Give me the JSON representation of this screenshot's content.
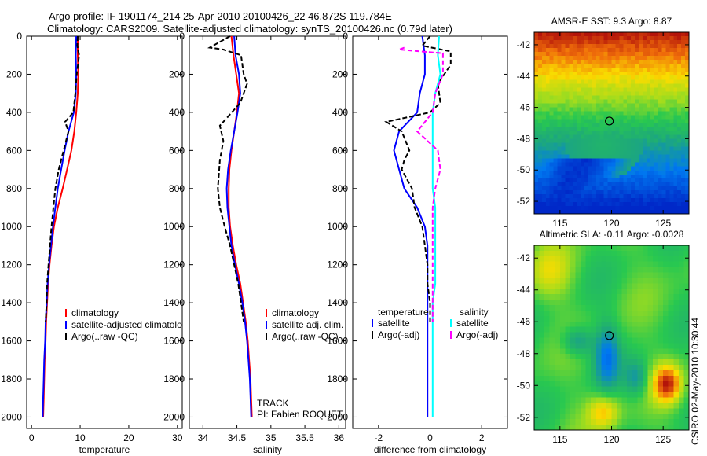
{
  "title": {
    "line1": "Argo profile: IF 1901174_214 25-Apr-2010 20100426_22 46.872S 119.784E",
    "line2": "Climatology: CARS2009. Satellite-adjusted climatology: synTS_20100426.nc (0.79d later)"
  },
  "side_text": "CSIRO 02-May-2010 10:30:44",
  "colors": {
    "red": "#ff0000",
    "blue": "#0000ff",
    "black": "#000000",
    "magenta": "#ff00ff",
    "cyan": "#00ffff"
  },
  "chart_data": [
    {
      "type": "line",
      "id": "temp",
      "xlabel": "temperature",
      "xlim": [
        -1,
        31
      ],
      "ylim": [
        2060,
        0
      ],
      "xticks": [
        0,
        10,
        20,
        30
      ],
      "yticks": [
        0,
        200,
        400,
        600,
        800,
        1000,
        1200,
        1400,
        1600,
        1800,
        2000
      ],
      "legend": {
        "placement": "lower-right",
        "entries": [
          "climatology",
          "satellite-adjusted climatology",
          "Argo(..raw -QC)"
        ]
      },
      "series": [
        {
          "name": "climatology",
          "color": "red",
          "dash": "",
          "points": [
            [
              9.5,
              0
            ],
            [
              9.5,
              100
            ],
            [
              9.6,
              200
            ],
            [
              9.5,
              300
            ],
            [
              9.2,
              400
            ],
            [
              8.8,
              500
            ],
            [
              8.2,
              600
            ],
            [
              7.3,
              700
            ],
            [
              6.4,
              800
            ],
            [
              5.4,
              900
            ],
            [
              4.6,
              1000
            ],
            [
              4.1,
              1100
            ],
            [
              3.7,
              1200
            ],
            [
              3.4,
              1300
            ],
            [
              3.2,
              1400
            ],
            [
              3.0,
              1500
            ],
            [
              2.9,
              1600
            ],
            [
              2.7,
              1700
            ],
            [
              2.6,
              1800
            ],
            [
              2.5,
              1900
            ],
            [
              2.4,
              2000
            ]
          ]
        },
        {
          "name": "satellite-adjusted climatology",
          "color": "blue",
          "dash": "",
          "points": [
            [
              9.2,
              0
            ],
            [
              9.1,
              100
            ],
            [
              9.2,
              200
            ],
            [
              9.1,
              300
            ],
            [
              8.7,
              400
            ],
            [
              7.6,
              500
            ],
            [
              6.8,
              600
            ],
            [
              6.1,
              700
            ],
            [
              5.4,
              800
            ],
            [
              4.9,
              900
            ],
            [
              4.4,
              1000
            ],
            [
              4.0,
              1100
            ],
            [
              3.6,
              1200
            ],
            [
              3.3,
              1300
            ],
            [
              3.1,
              1400
            ],
            [
              2.9,
              1500
            ],
            [
              2.8,
              1600
            ],
            [
              2.6,
              1700
            ],
            [
              2.5,
              1800
            ],
            [
              2.4,
              1900
            ],
            [
              2.3,
              2000
            ]
          ]
        },
        {
          "name": "Argo(..raw -QC)",
          "color": "black",
          "dash": "6,3",
          "points": [
            [
              9.5,
              0
            ],
            [
              9.4,
              50
            ],
            [
              9.8,
              100
            ],
            [
              9.3,
              200
            ],
            [
              9.0,
              300
            ],
            [
              8.6,
              400
            ],
            [
              6.9,
              450
            ],
            [
              7.6,
              500
            ],
            [
              6.6,
              600
            ],
            [
              5.6,
              700
            ],
            [
              4.9,
              800
            ],
            [
              4.5,
              900
            ],
            [
              4.1,
              1000
            ],
            [
              3.8,
              1100
            ],
            [
              3.5,
              1200
            ],
            [
              3.2,
              1300
            ],
            [
              3.1,
              1400
            ],
            [
              2.9,
              1500
            ]
          ]
        }
      ]
    },
    {
      "type": "line",
      "id": "sal",
      "xlabel": "salinity",
      "xlim": [
        33.8,
        36.1
      ],
      "ylim": [
        2060,
        0
      ],
      "xticks": [
        34,
        34.5,
        35,
        35.5,
        36
      ],
      "yticks": [
        0,
        200,
        400,
        600,
        800,
        1000,
        1200,
        1400,
        1600,
        1800,
        2000
      ],
      "legend": {
        "placement": "lower-right",
        "entries": [
          "climatology",
          "satellite adj. clim.",
          "Argo(..raw -QC)"
        ]
      },
      "annotations": [
        "TRACK",
        "PI: Fabien ROQUET"
      ],
      "series": [
        {
          "name": "climatology",
          "color": "red",
          "dash": "",
          "points": [
            [
              34.42,
              0
            ],
            [
              34.45,
              100
            ],
            [
              34.49,
              200
            ],
            [
              34.53,
              300
            ],
            [
              34.5,
              400
            ],
            [
              34.46,
              500
            ],
            [
              34.42,
              600
            ],
            [
              34.39,
              700
            ],
            [
              34.38,
              800
            ],
            [
              34.38,
              900
            ],
            [
              34.4,
              1000
            ],
            [
              34.44,
              1100
            ],
            [
              34.49,
              1200
            ],
            [
              34.55,
              1300
            ],
            [
              34.59,
              1400
            ],
            [
              34.63,
              1500
            ],
            [
              34.66,
              1600
            ],
            [
              34.68,
              1700
            ],
            [
              34.7,
              1800
            ],
            [
              34.71,
              1900
            ],
            [
              34.72,
              2000
            ]
          ]
        },
        {
          "name": "satellite adj. clim.",
          "color": "blue",
          "dash": "",
          "points": [
            [
              34.46,
              0
            ],
            [
              34.48,
              100
            ],
            [
              34.53,
              200
            ],
            [
              34.55,
              300
            ],
            [
              34.51,
              400
            ],
            [
              34.46,
              500
            ],
            [
              34.41,
              600
            ],
            [
              34.37,
              700
            ],
            [
              34.35,
              800
            ],
            [
              34.36,
              900
            ],
            [
              34.39,
              1000
            ],
            [
              34.42,
              1100
            ],
            [
              34.47,
              1200
            ],
            [
              34.53,
              1300
            ],
            [
              34.58,
              1400
            ],
            [
              34.62,
              1500
            ],
            [
              34.65,
              1600
            ],
            [
              34.67,
              1700
            ],
            [
              34.69,
              1800
            ],
            [
              34.7,
              1900
            ],
            [
              34.71,
              2000
            ]
          ]
        },
        {
          "name": "Argo(..raw -QC)",
          "color": "black",
          "dash": "6,3",
          "points": [
            [
              34.4,
              0
            ],
            [
              34.1,
              60
            ],
            [
              34.3,
              70
            ],
            [
              34.56,
              100
            ],
            [
              34.6,
              200
            ],
            [
              34.65,
              250
            ],
            [
              34.55,
              350
            ],
            [
              34.35,
              430
            ],
            [
              34.25,
              470
            ],
            [
              34.3,
              550
            ],
            [
              34.25,
              650
            ],
            [
              34.22,
              800
            ],
            [
              34.25,
              900
            ],
            [
              34.32,
              1000
            ],
            [
              34.4,
              1100
            ],
            [
              34.46,
              1200
            ],
            [
              34.52,
              1300
            ],
            [
              34.56,
              1400
            ],
            [
              34.6,
              1500
            ]
          ]
        }
      ]
    },
    {
      "type": "line",
      "id": "diff",
      "xlabel": "difference from climatology",
      "xlim": [
        -3,
        3
      ],
      "ylim": [
        2060,
        0
      ],
      "xticks": [
        -2,
        0,
        2
      ],
      "yticks": [
        0,
        200,
        400,
        600,
        800,
        1000,
        1200,
        1400,
        1600,
        1800,
        2000
      ],
      "legend": {
        "placement": "lower-right",
        "temperature_heading": "temperature",
        "salinity_heading": "salinity",
        "entries": [
          "satellite",
          "Argo(-adj)",
          "satellite",
          "Argo(-adj)"
        ]
      },
      "series": [
        {
          "name": "satellite",
          "group": "temperature",
          "color": "blue",
          "dash": "",
          "points": [
            [
              -0.3,
              0
            ],
            [
              -0.2,
              100
            ],
            [
              -0.2,
              200
            ],
            [
              -0.4,
              300
            ],
            [
              -0.5,
              400
            ],
            [
              -1.2,
              500
            ],
            [
              -1.4,
              600
            ],
            [
              -1.2,
              700
            ],
            [
              -1.0,
              800
            ],
            [
              -0.5,
              900
            ],
            [
              -0.2,
              1000
            ],
            [
              -0.1,
              1100
            ],
            [
              -0.1,
              1200
            ],
            [
              -0.1,
              1300
            ],
            [
              -0.1,
              1400
            ],
            [
              -0.1,
              1500
            ],
            [
              -0.1,
              1600
            ],
            [
              -0.1,
              1700
            ],
            [
              -0.1,
              1800
            ],
            [
              -0.1,
              1900
            ],
            [
              -0.1,
              2000
            ]
          ]
        },
        {
          "name": "Argo(-adj)",
          "group": "temperature",
          "color": "black",
          "dash": "6,3",
          "points": [
            [
              0.0,
              0
            ],
            [
              -0.3,
              50
            ],
            [
              0.8,
              80
            ],
            [
              0.8,
              150
            ],
            [
              0.3,
              250
            ],
            [
              0.4,
              350
            ],
            [
              0.0,
              400
            ],
            [
              -1.7,
              450
            ],
            [
              -1.1,
              500
            ],
            [
              -0.8,
              600
            ],
            [
              -1.0,
              650
            ],
            [
              -1.1,
              700
            ],
            [
              -0.7,
              800
            ],
            [
              -0.6,
              900
            ],
            [
              -0.3,
              1000
            ],
            [
              -0.2,
              1100
            ],
            [
              -0.1,
              1200
            ],
            [
              -0.1,
              1300
            ],
            [
              0.0,
              1400
            ],
            [
              0.0,
              1500
            ]
          ]
        },
        {
          "name": "satellite",
          "group": "salinity",
          "color": "cyan",
          "dash": "",
          "points": [
            [
              0.35,
              0
            ],
            [
              0.3,
              100
            ],
            [
              0.4,
              200
            ],
            [
              0.2,
              300
            ],
            [
              0.1,
              400
            ],
            [
              0.1,
              600
            ],
            [
              0.1,
              800
            ],
            [
              0.2,
              900
            ],
            [
              0.2,
              1000
            ],
            [
              0.2,
              1100
            ],
            [
              0.2,
              1200
            ],
            [
              0.2,
              1300
            ],
            [
              0.1,
              1400
            ],
            [
              0.1,
              1500
            ],
            [
              0.1,
              1600
            ],
            [
              0.1,
              1700
            ],
            [
              0.1,
              1800
            ],
            [
              0.1,
              1900
            ],
            [
              0.1,
              2000
            ]
          ]
        },
        {
          "name": "Argo(-adj)",
          "group": "salinity",
          "color": "magenta",
          "dash": "6,3",
          "points": [
            [
              -1.0,
              60
            ],
            [
              -1.2,
              70
            ],
            [
              0.5,
              90
            ],
            [
              0.5,
              200
            ],
            [
              0.2,
              300
            ],
            [
              0.1,
              400
            ],
            [
              -0.5,
              500
            ],
            [
              0.3,
              600
            ],
            [
              0.4,
              700
            ],
            [
              0.2,
              800
            ],
            [
              0.1,
              900
            ],
            [
              0.1,
              1000
            ],
            [
              0.1,
              1100
            ],
            [
              0.1,
              1200
            ],
            [
              0.1,
              1300
            ],
            [
              0.1,
              1400
            ],
            [
              0.1,
              1500
            ]
          ]
        }
      ]
    },
    {
      "type": "heatmap",
      "id": "sst",
      "title": "AMSR-E SST: 9.3 Argo: 8.87",
      "xlim": [
        112.5,
        127.5
      ],
      "ylim": [
        -52.8,
        -41.2
      ],
      "xticks": [
        115,
        120,
        125
      ],
      "yticks": [
        -42,
        -44,
        -46,
        -48,
        -50,
        -52
      ],
      "marker": {
        "lon": 119.784,
        "lat": -46.872
      }
    },
    {
      "type": "heatmap",
      "id": "sla",
      "title": "Altimetric SLA: -0.11 Argo: -0.0028",
      "xlim": [
        112.5,
        127.5
      ],
      "ylim": [
        -52.8,
        -41.2
      ],
      "xticks": [
        115,
        120,
        125
      ],
      "yticks": [
        -42,
        -44,
        -46,
        -48,
        -50,
        -52
      ],
      "marker": {
        "lon": 119.784,
        "lat": -46.872
      }
    }
  ]
}
